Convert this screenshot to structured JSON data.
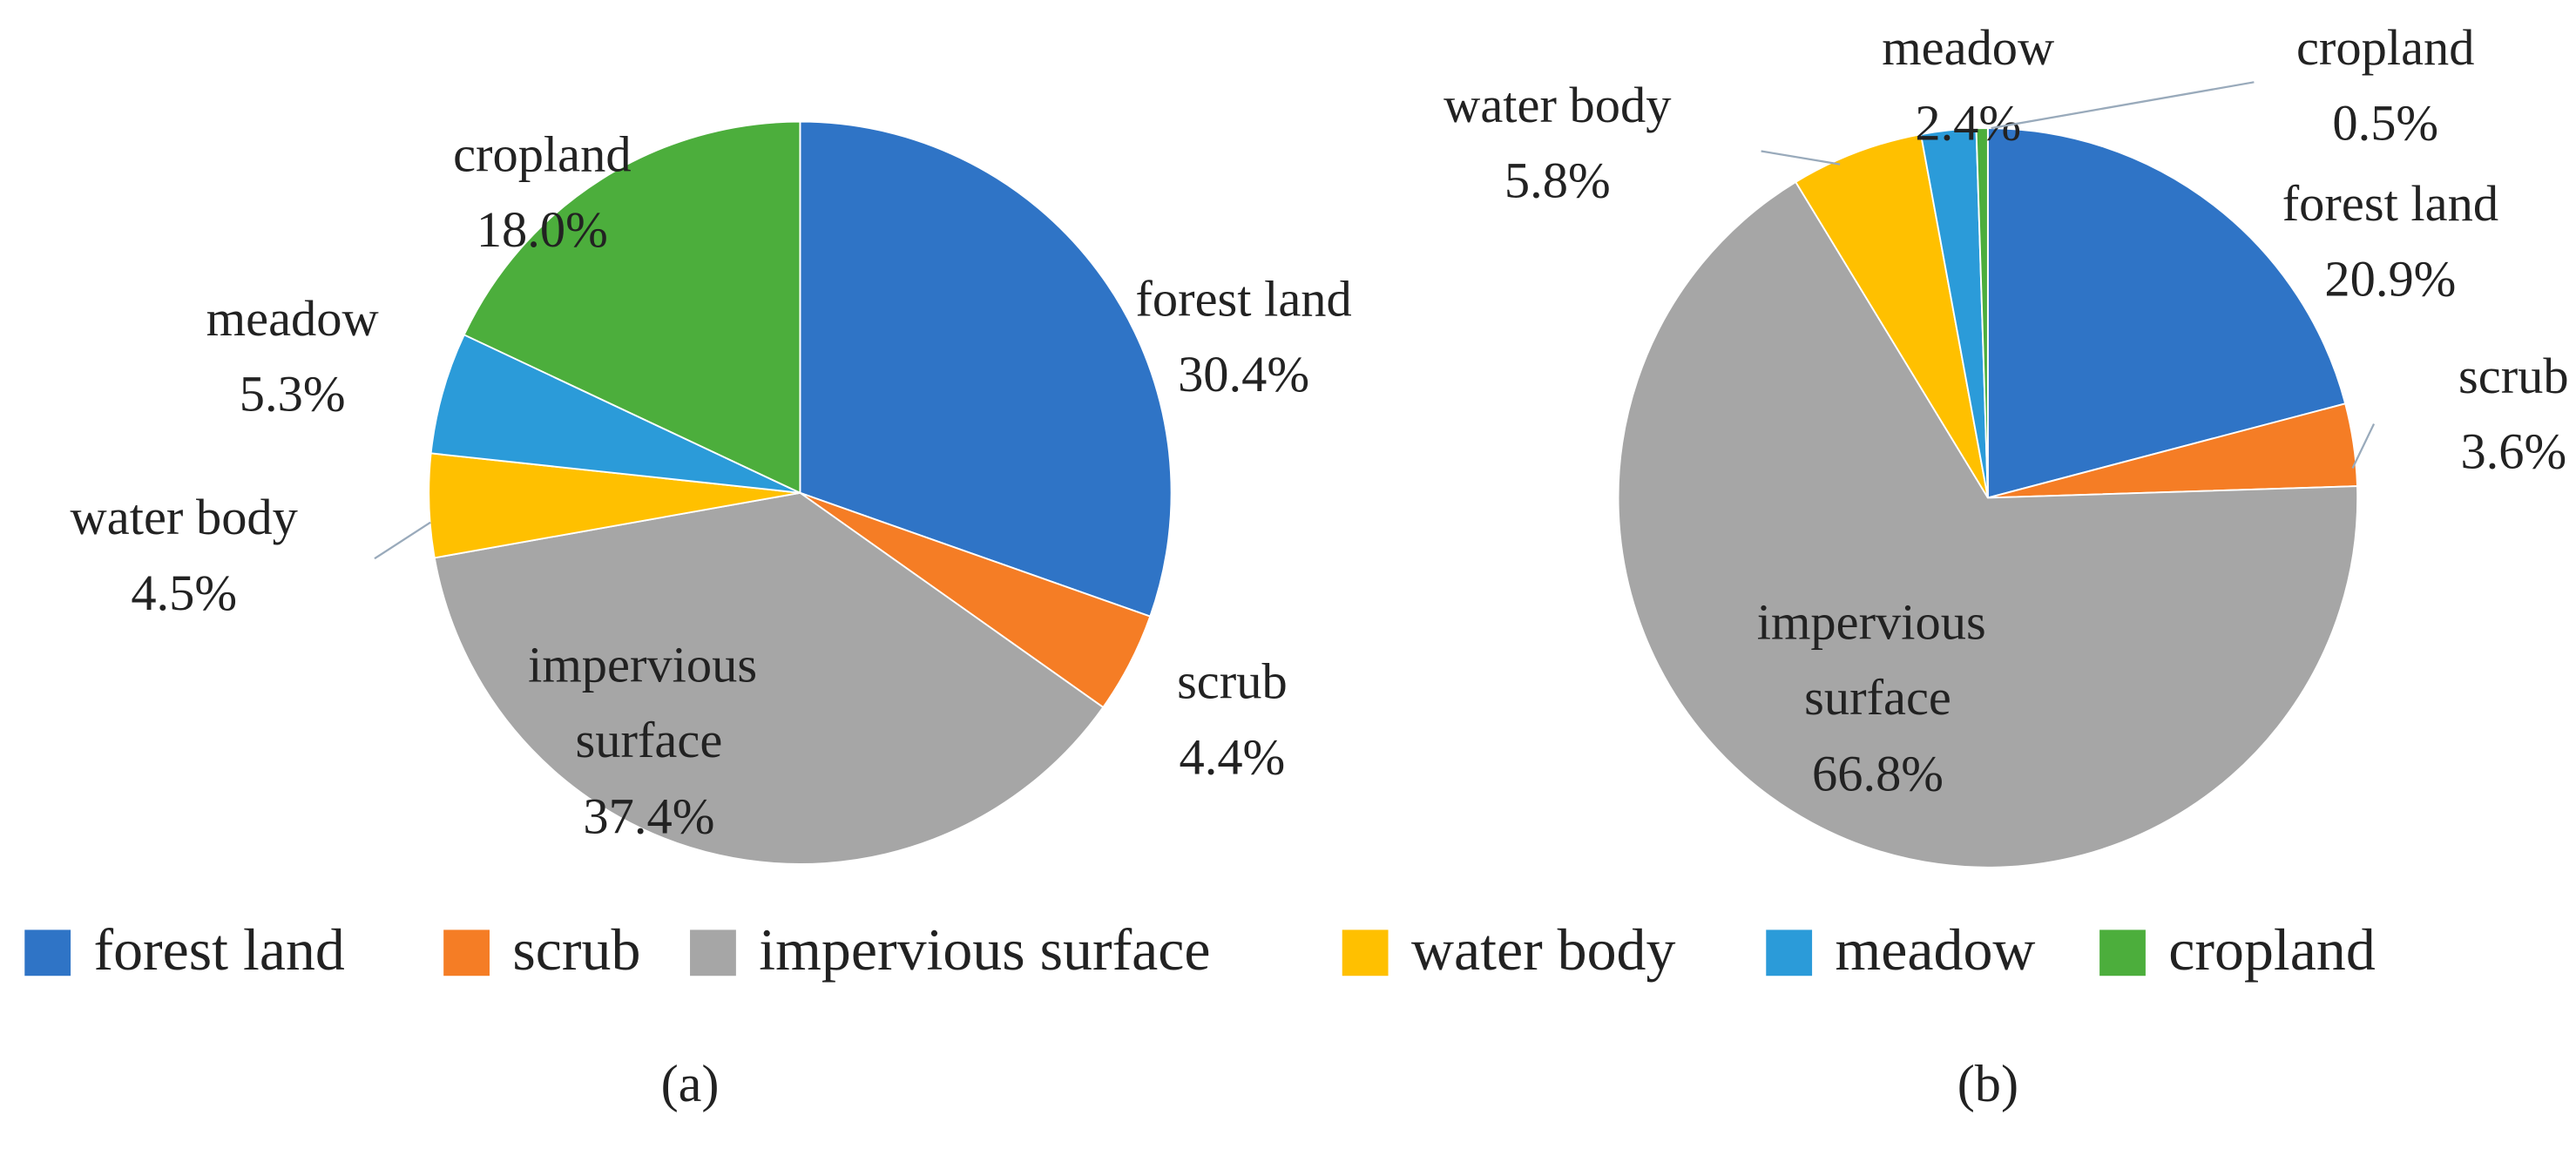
{
  "chart_data": [
    {
      "type": "pie",
      "caption": "(a)",
      "categories": [
        "forest land",
        "scrub",
        "impervious surface",
        "water body",
        "meadow",
        "cropland"
      ],
      "values": [
        30.4,
        4.4,
        37.4,
        4.5,
        5.3,
        18.0
      ],
      "value_labels": [
        "30.4%",
        "4.4%",
        "37.4%",
        "4.5%",
        "5.3%",
        "18.0%"
      ],
      "colors": [
        "#2f74c6",
        "#f57d25",
        "#a6a6a6",
        "#ffc000",
        "#2b9bd9",
        "#4cae3c"
      ],
      "legend": "bottom"
    },
    {
      "type": "pie",
      "caption": "(b)",
      "categories": [
        "forest land",
        "scrub",
        "impervious surface",
        "water body",
        "meadow",
        "cropland"
      ],
      "values": [
        20.9,
        3.6,
        66.8,
        5.8,
        2.4,
        0.5
      ],
      "value_labels": [
        "20.9%",
        "3.6%",
        "66.8%",
        "5.8%",
        "2.4%",
        "0.5%"
      ],
      "colors": [
        "#2f74c6",
        "#f57d25",
        "#a6a6a6",
        "#ffc000",
        "#2b9bd9",
        "#4cae3c"
      ]
    }
  ]
}
